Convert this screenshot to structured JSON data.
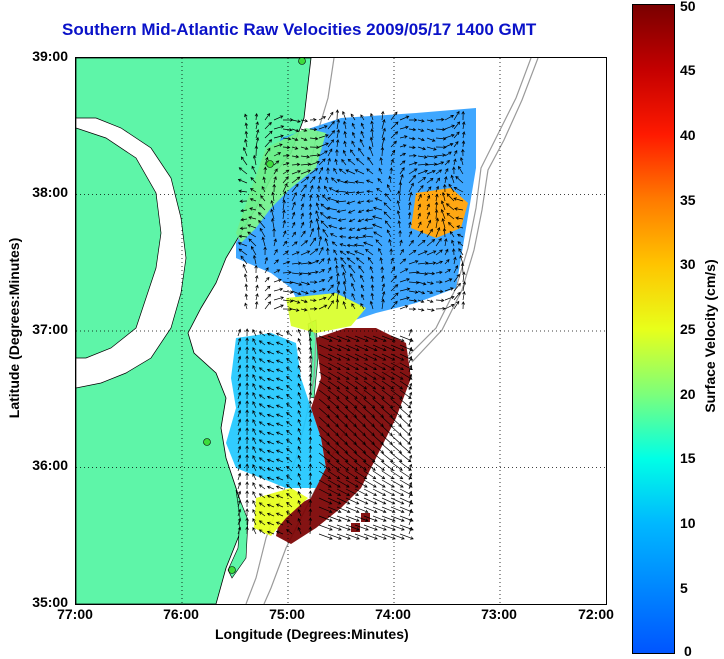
{
  "title": "Southern Mid-Atlantic Raw Velocities 2009/05/17 1400 GMT",
  "axes": {
    "xlabel": "Longitude (Degrees:Minutes)",
    "ylabel": "Latitude (Degrees:Minutes)",
    "lon_ticks": [
      "77:00",
      "76:00",
      "75:00",
      "74:00",
      "73:00",
      "72:00"
    ],
    "lat_ticks": [
      "39:00",
      "38:00",
      "37:00",
      "36:00",
      "35:00"
    ],
    "lon_range": [
      -77,
      -72
    ],
    "lat_range": [
      35,
      39
    ]
  },
  "colorbar": {
    "label": "Surface Velocity (cm/s)",
    "ticks": [
      "50",
      "45",
      "40",
      "35",
      "30",
      "25",
      "20",
      "15",
      "10",
      "5",
      "0"
    ],
    "range": [
      0,
      50
    ]
  },
  "colors": {
    "title": "#0a12c8",
    "land": "#5ef5a8",
    "coastline": "#000000",
    "bathymetry": "#9a9a9a",
    "station": "#3cdc3c"
  }
}
